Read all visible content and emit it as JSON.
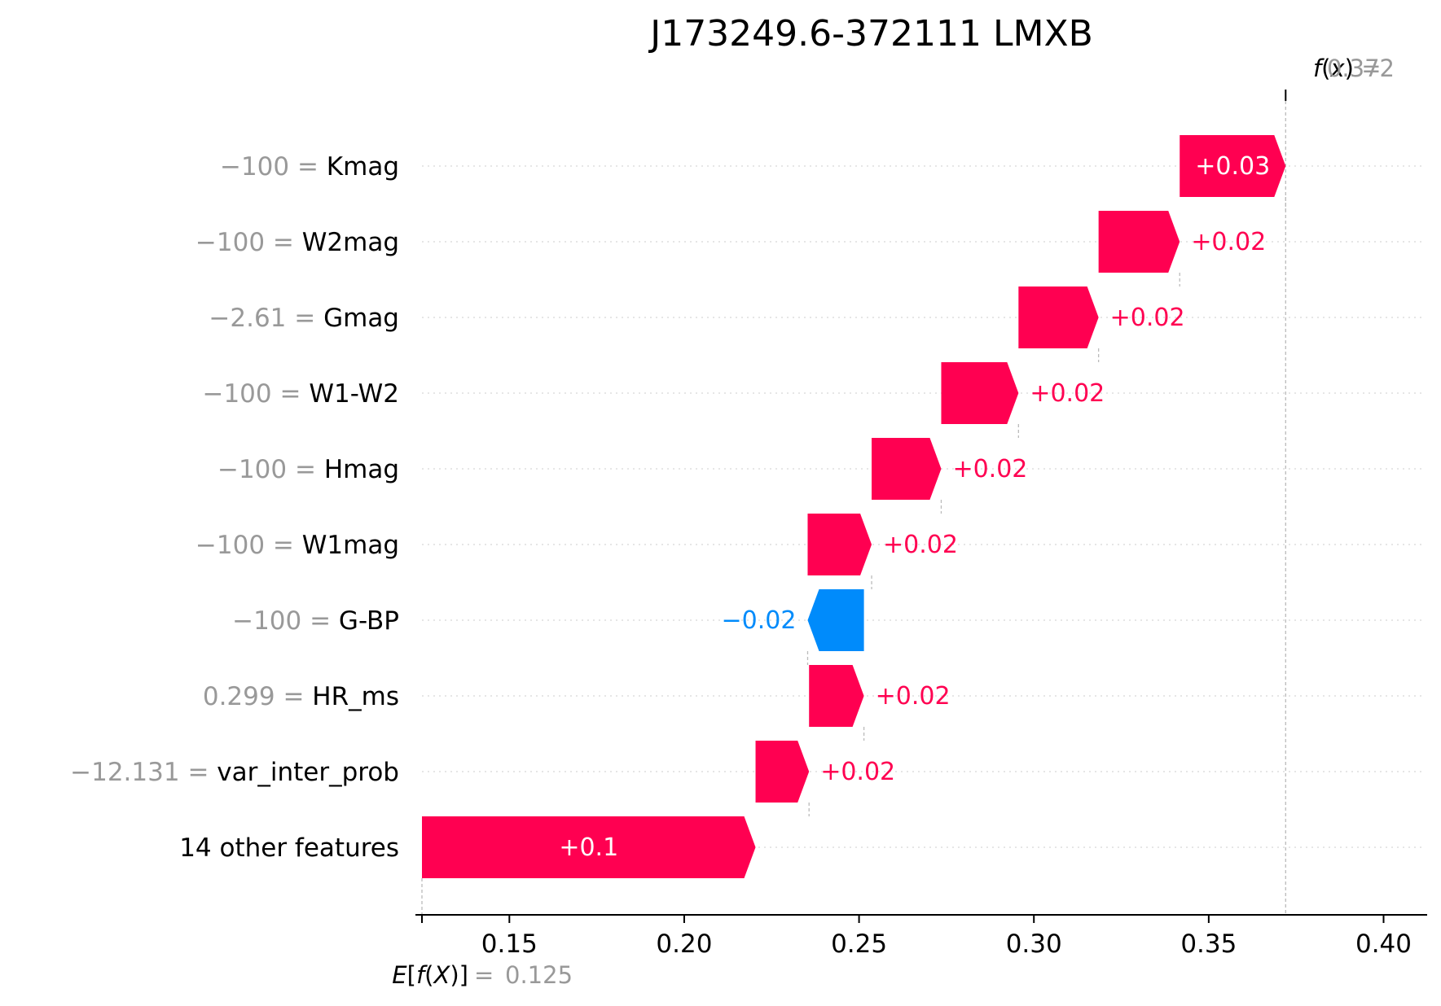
{
  "chart_data": {
    "type": "waterfall",
    "title": "J173249.6-372111 LMXB",
    "base_value": 0.125,
    "base_value_label": "0.125",
    "output_value": 0.372,
    "output_value_label": "0.372",
    "xlim": [
      0.125,
      0.412
    ],
    "ticks": [
      0.15,
      0.2,
      0.25,
      0.3,
      0.35,
      0.4
    ],
    "tick_labels": [
      "0.15",
      "0.20",
      "0.25",
      "0.30",
      "0.35",
      "0.40"
    ],
    "colors": {
      "positive": "#ff0051",
      "negative": "#008bfb",
      "muted": "#999999"
    },
    "features": [
      {
        "name": "Kmag",
        "value": "−100",
        "start": 0.3417,
        "end": 0.372,
        "label": "+0.03",
        "label_inside": true
      },
      {
        "name": "W2mag",
        "value": "−100",
        "start": 0.3185,
        "end": 0.3417,
        "label": "+0.02",
        "label_inside": false
      },
      {
        "name": "Gmag",
        "value": "−2.61",
        "start": 0.2956,
        "end": 0.3185,
        "label": "+0.02",
        "label_inside": false
      },
      {
        "name": "W1-W2",
        "value": "−100",
        "start": 0.2735,
        "end": 0.2956,
        "label": "+0.02",
        "label_inside": false
      },
      {
        "name": "Hmag",
        "value": "−100",
        "start": 0.2536,
        "end": 0.2735,
        "label": "+0.02",
        "label_inside": false
      },
      {
        "name": "W1mag",
        "value": "−100",
        "start": 0.2353,
        "end": 0.2536,
        "label": "+0.02",
        "label_inside": false
      },
      {
        "name": "G-BP",
        "value": "−100",
        "start": 0.2514,
        "end": 0.2353,
        "label": "−0.02",
        "label_inside": false
      },
      {
        "name": "HR_ms",
        "value": "0.299",
        "start": 0.2357,
        "end": 0.2514,
        "label": "+0.02",
        "label_inside": false
      },
      {
        "name": "var_inter_prob",
        "value": "−12.131",
        "start": 0.2204,
        "end": 0.2357,
        "label": "+0.02",
        "label_inside": false
      },
      {
        "name": "14 other features",
        "value": "",
        "start": 0.125,
        "end": 0.2204,
        "label": "+0.1",
        "label_inside": true
      }
    ]
  }
}
